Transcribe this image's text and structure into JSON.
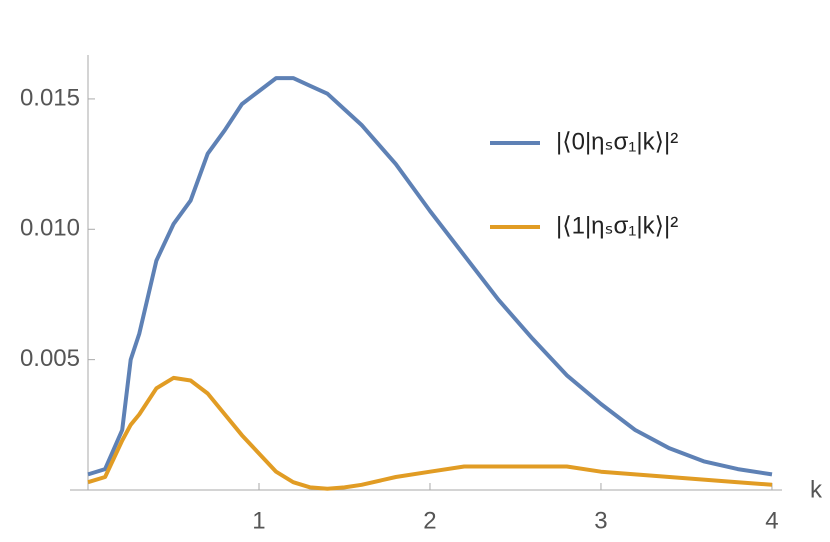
{
  "chart_data": {
    "type": "line",
    "x_label": "k",
    "x": [
      0,
      0.1,
      0.2,
      0.25,
      0.3,
      0.4,
      0.5,
      0.6,
      0.7,
      0.8,
      0.9,
      1.0,
      1.1,
      1.2,
      1.3,
      1.4,
      1.5,
      1.6,
      1.8,
      2.0,
      2.2,
      2.4,
      2.6,
      2.8,
      3.0,
      3.2,
      3.4,
      3.6,
      3.8,
      4.0
    ],
    "series": [
      {
        "name": "|⟨0|ηₛσ₁|k⟩|²",
        "color": "#5e81b5",
        "values": [
          0.0006,
          0.0008,
          0.0023,
          0.005,
          0.006,
          0.0088,
          0.0102,
          0.0111,
          0.0129,
          0.0138,
          0.0148,
          0.0153,
          0.0158,
          0.0158,
          0.0155,
          0.0152,
          0.0146,
          0.014,
          0.0125,
          0.0107,
          0.009,
          0.0073,
          0.0058,
          0.0044,
          0.0033,
          0.0023,
          0.0016,
          0.0011,
          0.0008,
          0.0006
        ]
      },
      {
        "name": "|⟨1|ηₛσ₁|k⟩|²",
        "color": "#e19c24",
        "values": [
          0.0003,
          0.0005,
          0.0019,
          0.0025,
          0.0029,
          0.0039,
          0.0043,
          0.0042,
          0.0037,
          0.0029,
          0.0021,
          0.0014,
          0.0007,
          0.0003,
          0.0001,
          5e-05,
          0.0001,
          0.0002,
          0.0005,
          0.0007,
          0.0009,
          0.0009,
          0.0009,
          0.0009,
          0.0007,
          0.0006,
          0.0005,
          0.0004,
          0.0003,
          0.0002
        ]
      }
    ],
    "xlim": [
      0,
      4.05
    ],
    "ylim": [
      0,
      0.0167
    ],
    "xticks": [
      1,
      2,
      3,
      4
    ],
    "yticks": [
      0.005,
      {
        "value": 0.01,
        "label": "0.010"
      },
      0.015
    ],
    "legend": "right"
  }
}
